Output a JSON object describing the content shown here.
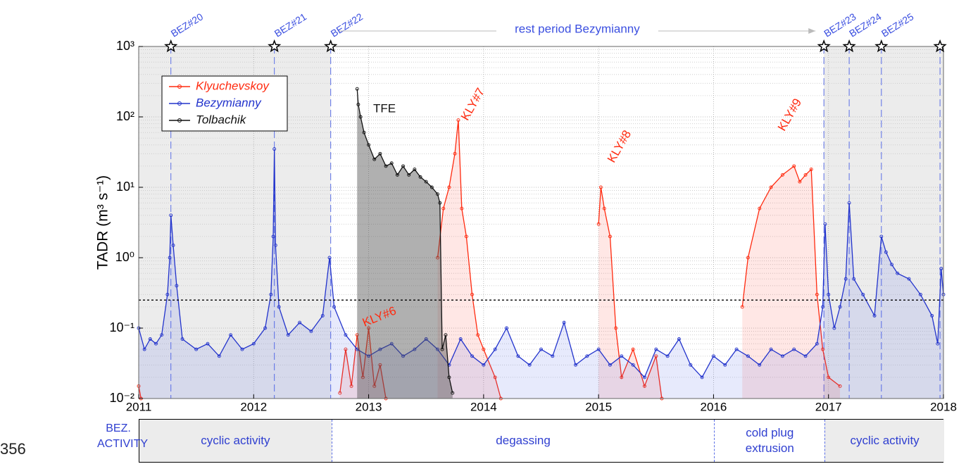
{
  "page_number": "356",
  "chart_data": {
    "type": "line",
    "y_label": "TADR (m³ s⁻¹)",
    "xlim": [
      2011,
      2018
    ],
    "xticks": [
      2011,
      2012,
      2013,
      2014,
      2015,
      2016,
      2017,
      2018
    ],
    "ylim": [
      0.01,
      1000
    ],
    "yticks": [
      {
        "value": 0.01,
        "label": "10⁻²"
      },
      {
        "value": 0.1,
        "label": "10⁻¹"
      },
      {
        "value": 1,
        "label": "10⁰"
      },
      {
        "value": 10,
        "label": "10¹"
      },
      {
        "value": 100,
        "label": "10²"
      },
      {
        "value": 1000,
        "label": "10³"
      }
    ],
    "log_y": true,
    "grid": true,
    "legend": "upper left",
    "threshold": 0.25,
    "events": {
      "x": [
        2011.28,
        2012.18,
        2012.67,
        2016.96,
        2017.18,
        2017.46,
        2017.97
      ],
      "labels": [
        "BEZ#20",
        "BEZ#21",
        "BEZ#22",
        "BEZ#23",
        "BEZ#24",
        "BEZ#25",
        null
      ]
    },
    "rest_period": {
      "label": "rest period Bezymianny",
      "start": 2012.67,
      "end": 2016.96
    },
    "annotations": [
      "TFE",
      "KLY#6",
      "KLY#7",
      "KLY#8",
      "KLY#9"
    ],
    "series": [
      {
        "name": "Klyuchevskoy",
        "color": "#ff2a0f",
        "x": [
          2011.0,
          2011.02,
          2012.72,
          2012.75,
          2012.8,
          2012.85,
          2012.9,
          2012.95,
          2013.0,
          2013.05,
          2013.1,
          2013.15,
          2013.55,
          2013.6,
          2013.65,
          2013.7,
          2013.75,
          2013.78,
          2013.81,
          2013.85,
          2013.9,
          2013.95,
          2014.0,
          2014.1,
          2014.15,
          2014.95,
          2015.0,
          2015.02,
          2015.05,
          2015.1,
          2015.15,
          2015.2,
          2015.3,
          2015.4,
          2015.5,
          2015.55,
          2016.2,
          2016.25,
          2016.3,
          2016.4,
          2016.5,
          2016.6,
          2016.7,
          2016.75,
          2016.8,
          2016.85,
          2016.9,
          2016.95,
          2017.0,
          2017.1
        ],
        "values": [
          0.015,
          0.01,
          null,
          0.012,
          0.05,
          0.015,
          0.08,
          0.02,
          0.1,
          0.015,
          0.03,
          0.01,
          null,
          1,
          5,
          10,
          30,
          90,
          5,
          2,
          0.3,
          0.08,
          0.05,
          0.02,
          0.01,
          null,
          3,
          10,
          5,
          2,
          0.1,
          0.02,
          0.05,
          0.015,
          0.04,
          0.01,
          null,
          0.2,
          1,
          5,
          10,
          15,
          20,
          12,
          15,
          18,
          0.3,
          0.05,
          0.02,
          0.015
        ]
      },
      {
        "name": "Bezymianny",
        "color": "#2233cc",
        "x": [
          2011.0,
          2011.05,
          2011.1,
          2011.15,
          2011.2,
          2011.25,
          2011.27,
          2011.28,
          2011.3,
          2011.33,
          2011.38,
          2011.5,
          2011.6,
          2011.7,
          2011.8,
          2011.9,
          2012.0,
          2012.1,
          2012.15,
          2012.17,
          2012.18,
          2012.19,
          2012.22,
          2012.3,
          2012.4,
          2012.5,
          2012.6,
          2012.66,
          2012.7,
          2012.8,
          2012.9,
          2013.0,
          2013.1,
          2013.2,
          2013.3,
          2013.4,
          2013.5,
          2013.6,
          2013.7,
          2013.8,
          2013.9,
          2014.0,
          2014.1,
          2014.2,
          2014.3,
          2014.4,
          2014.5,
          2014.6,
          2014.7,
          2014.8,
          2014.9,
          2015.0,
          2015.1,
          2015.2,
          2015.3,
          2015.4,
          2015.5,
          2015.6,
          2015.7,
          2015.8,
          2015.9,
          2016.0,
          2016.1,
          2016.2,
          2016.3,
          2016.4,
          2016.5,
          2016.6,
          2016.7,
          2016.8,
          2016.9,
          2016.95,
          2016.97,
          2017.0,
          2017.05,
          2017.1,
          2017.15,
          2017.18,
          2017.22,
          2017.3,
          2017.4,
          2017.46,
          2017.5,
          2017.55,
          2017.6,
          2017.7,
          2017.8,
          2017.9,
          2017.95,
          2017.98,
          2018.0
        ],
        "values": [
          0.1,
          0.05,
          0.07,
          0.06,
          0.08,
          0.3,
          1.0,
          4,
          1.5,
          0.4,
          0.07,
          0.05,
          0.06,
          0.04,
          0.08,
          0.05,
          0.06,
          0.1,
          0.3,
          2,
          35,
          1.5,
          0.2,
          0.08,
          0.12,
          0.09,
          0.15,
          1.0,
          0.2,
          0.08,
          0.05,
          0.04,
          0.05,
          0.06,
          0.04,
          0.05,
          0.07,
          0.05,
          0.03,
          0.07,
          0.04,
          0.03,
          0.05,
          0.1,
          0.04,
          0.03,
          0.05,
          0.04,
          0.12,
          0.03,
          0.04,
          0.05,
          0.03,
          0.04,
          0.03,
          0.02,
          0.05,
          0.04,
          0.07,
          0.03,
          0.02,
          0.04,
          0.03,
          0.05,
          0.04,
          0.03,
          0.05,
          0.04,
          0.05,
          0.04,
          0.06,
          0.2,
          3,
          0.3,
          0.1,
          0.2,
          0.5,
          6,
          0.5,
          0.3,
          0.15,
          2,
          1.2,
          0.8,
          0.6,
          0.5,
          0.3,
          0.15,
          0.06,
          0.7,
          0.3
        ]
      },
      {
        "name": "Tolbachik",
        "color": "#111111",
        "x": [
          2012.9,
          2012.91,
          2012.93,
          2012.96,
          2013.0,
          2013.05,
          2013.1,
          2013.15,
          2013.2,
          2013.25,
          2013.3,
          2013.35,
          2013.4,
          2013.45,
          2013.5,
          2013.55,
          2013.6,
          2013.62,
          2013.64,
          2013.67,
          2013.7,
          2013.73
        ],
        "values": [
          250,
          150,
          100,
          60,
          40,
          25,
          30,
          20,
          22,
          15,
          20,
          15,
          18,
          14,
          12,
          10,
          8,
          6,
          0.05,
          0.08,
          0.02,
          0.012
        ]
      }
    ],
    "phases": {
      "title": "BEZ. ACTIVITY",
      "items": [
        {
          "label": "cyclic activity",
          "start": 2011,
          "end": 2012.67,
          "shade": true
        },
        {
          "label": "degassing",
          "start": 2012.67,
          "end": 2016.0,
          "shade": false
        },
        {
          "label": "cold plug extrusion",
          "start": 2016.0,
          "end": 2016.96,
          "shade": false
        },
        {
          "label": "cyclic activity",
          "start": 2016.96,
          "end": 2018,
          "shade": true
        }
      ]
    }
  }
}
